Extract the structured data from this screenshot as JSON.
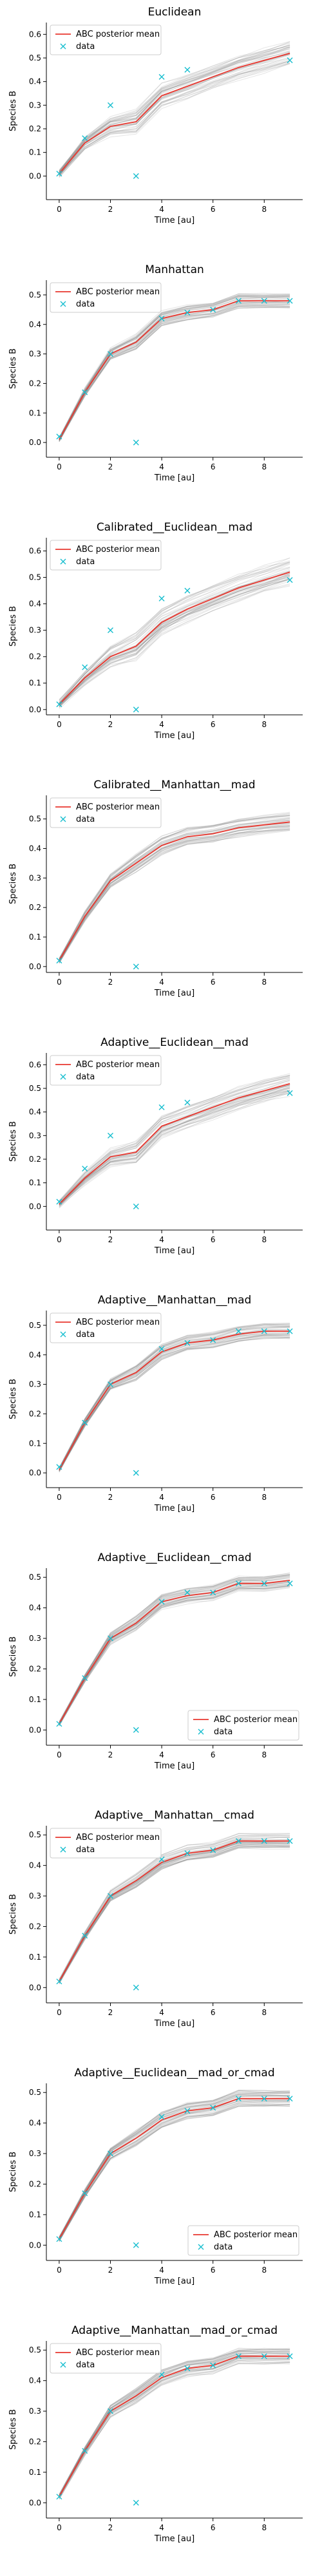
{
  "chart_data": [
    {
      "type": "line",
      "title": "Euclidean",
      "xlabel": "Time [au]",
      "ylabel": "Species B",
      "xlim": [
        -0.5,
        9.5
      ],
      "ylim": [
        -0.1,
        0.65
      ],
      "xticks": [
        0,
        2,
        4,
        6,
        8
      ],
      "yticks": [
        0.0,
        0.1,
        0.2,
        0.3,
        0.4,
        0.5,
        0.6
      ],
      "legend_loc": "upper-left",
      "legend": [
        "ABC posterior mean",
        "data"
      ],
      "series": [
        {
          "name": "ABC posterior mean",
          "kind": "line",
          "color": "#e8372f",
          "x": [
            0,
            1,
            2,
            3,
            4,
            5,
            6,
            7,
            8,
            9
          ],
          "y": [
            0.01,
            0.14,
            0.21,
            0.23,
            0.34,
            0.38,
            0.42,
            0.46,
            0.49,
            0.52
          ]
        },
        {
          "name": "data",
          "kind": "marker",
          "color": "#17becf",
          "x": [
            0,
            1,
            2,
            3,
            4,
            5,
            9
          ],
          "y": [
            0.01,
            0.16,
            0.3,
            0.0,
            0.42,
            0.45,
            0.49
          ]
        }
      ],
      "spread": 0.05
    },
    {
      "type": "line",
      "title": "Manhattan",
      "xlabel": "Time [au]",
      "ylabel": "Species B",
      "xlim": [
        -0.5,
        9.5
      ],
      "ylim": [
        -0.05,
        0.55
      ],
      "xticks": [
        0,
        2,
        4,
        6,
        8
      ],
      "yticks": [
        0.0,
        0.1,
        0.2,
        0.3,
        0.4,
        0.5
      ],
      "legend_loc": "upper-left",
      "legend": [
        "ABC posterior mean",
        "data"
      ],
      "series": [
        {
          "name": "ABC posterior mean",
          "kind": "line",
          "color": "#e8372f",
          "x": [
            0,
            1,
            2,
            3,
            4,
            5,
            6,
            7,
            8,
            9
          ],
          "y": [
            0.01,
            0.17,
            0.3,
            0.34,
            0.42,
            0.44,
            0.45,
            0.48,
            0.48,
            0.48
          ]
        },
        {
          "name": "data",
          "kind": "marker",
          "color": "#17becf",
          "x": [
            0,
            1,
            2,
            3,
            4,
            5,
            6,
            7,
            8,
            9
          ],
          "y": [
            0.02,
            0.17,
            0.3,
            0.0,
            0.42,
            0.44,
            0.45,
            0.48,
            0.48,
            0.48
          ]
        }
      ],
      "spread": 0.025
    },
    {
      "type": "line",
      "title": "Calibrated__Euclidean__mad",
      "xlabel": "Time [au]",
      "ylabel": "Species B",
      "xlim": [
        -0.5,
        9.5
      ],
      "ylim": [
        -0.02,
        0.65
      ],
      "xticks": [
        0,
        2,
        4,
        6,
        8
      ],
      "yticks": [
        0.0,
        0.1,
        0.2,
        0.3,
        0.4,
        0.5,
        0.6
      ],
      "legend_loc": "upper-left",
      "legend": [
        "ABC posterior mean",
        "data"
      ],
      "series": [
        {
          "name": "ABC posterior mean",
          "kind": "line",
          "color": "#e8372f",
          "x": [
            0,
            1,
            2,
            3,
            4,
            5,
            6,
            7,
            8,
            9
          ],
          "y": [
            0.02,
            0.12,
            0.2,
            0.24,
            0.33,
            0.38,
            0.42,
            0.46,
            0.49,
            0.52
          ]
        },
        {
          "name": "data",
          "kind": "marker",
          "color": "#17becf",
          "x": [
            0,
            1,
            2,
            3,
            4,
            5,
            9
          ],
          "y": [
            0.02,
            0.16,
            0.3,
            0.0,
            0.42,
            0.45,
            0.49
          ]
        }
      ],
      "spread": 0.05
    },
    {
      "type": "line",
      "title": "Calibrated__Manhattan__mad",
      "xlabel": "Time [au]",
      "ylabel": "Species B",
      "xlim": [
        -0.5,
        9.5
      ],
      "ylim": [
        -0.02,
        0.58
      ],
      "xticks": [
        0,
        2,
        4,
        6,
        8
      ],
      "yticks": [
        0.0,
        0.1,
        0.2,
        0.3,
        0.4,
        0.5
      ],
      "legend_loc": "upper-left",
      "legend": [
        "ABC posterior mean",
        "data"
      ],
      "series": [
        {
          "name": "ABC posterior mean",
          "kind": "line",
          "color": "#e8372f",
          "x": [
            0,
            1,
            2,
            3,
            4,
            5,
            6,
            7,
            8,
            9
          ],
          "y": [
            0.02,
            0.17,
            0.29,
            0.35,
            0.41,
            0.44,
            0.45,
            0.47,
            0.48,
            0.49
          ]
        },
        {
          "name": "data",
          "kind": "marker",
          "color": "#17becf",
          "x": [
            0,
            3
          ],
          "y": [
            0.02,
            0.0
          ]
        }
      ],
      "spread": 0.03
    },
    {
      "type": "line",
      "title": "Adaptive__Euclidean__mad",
      "xlabel": "Time [au]",
      "ylabel": "Species B",
      "xlim": [
        -0.5,
        9.5
      ],
      "ylim": [
        -0.1,
        0.65
      ],
      "xticks": [
        0,
        2,
        4,
        6,
        8
      ],
      "yticks": [
        0.0,
        0.1,
        0.2,
        0.3,
        0.4,
        0.5,
        0.6
      ],
      "legend_loc": "upper-left",
      "legend": [
        "ABC posterior mean",
        "data"
      ],
      "series": [
        {
          "name": "ABC posterior mean",
          "kind": "line",
          "color": "#e8372f",
          "x": [
            0,
            1,
            2,
            3,
            4,
            5,
            6,
            7,
            8,
            9
          ],
          "y": [
            0.01,
            0.12,
            0.21,
            0.23,
            0.34,
            0.38,
            0.42,
            0.46,
            0.49,
            0.52
          ]
        },
        {
          "name": "data",
          "kind": "marker",
          "color": "#17becf",
          "x": [
            0,
            1,
            2,
            3,
            4,
            5,
            9
          ],
          "y": [
            0.02,
            0.16,
            0.3,
            0.0,
            0.42,
            0.44,
            0.48
          ]
        }
      ],
      "spread": 0.05
    },
    {
      "type": "line",
      "title": "Adaptive__Manhattan__mad",
      "xlabel": "Time [au]",
      "ylabel": "Species B",
      "xlim": [
        -0.5,
        9.5
      ],
      "ylim": [
        -0.05,
        0.55
      ],
      "xticks": [
        0,
        2,
        4,
        6,
        8
      ],
      "yticks": [
        0.0,
        0.1,
        0.2,
        0.3,
        0.4,
        0.5
      ],
      "legend_loc": "upper-left",
      "legend": [
        "ABC posterior mean",
        "data"
      ],
      "series": [
        {
          "name": "ABC posterior mean",
          "kind": "line",
          "color": "#e8372f",
          "x": [
            0,
            1,
            2,
            3,
            4,
            5,
            6,
            7,
            8,
            9
          ],
          "y": [
            0.01,
            0.17,
            0.3,
            0.34,
            0.41,
            0.44,
            0.45,
            0.47,
            0.48,
            0.48
          ]
        },
        {
          "name": "data",
          "kind": "marker",
          "color": "#17becf",
          "x": [
            0,
            1,
            2,
            3,
            4,
            5,
            6,
            7,
            8,
            9
          ],
          "y": [
            0.02,
            0.17,
            0.3,
            0.0,
            0.42,
            0.44,
            0.45,
            0.48,
            0.48,
            0.48
          ]
        }
      ],
      "spread": 0.025
    },
    {
      "type": "line",
      "title": "Adaptive__Euclidean__cmad",
      "xlabel": "Time [au]",
      "ylabel": "Species B",
      "xlim": [
        -0.5,
        9.5
      ],
      "ylim": [
        -0.05,
        0.53
      ],
      "xticks": [
        0,
        2,
        4,
        6,
        8
      ],
      "yticks": [
        0.0,
        0.1,
        0.2,
        0.3,
        0.4,
        0.5
      ],
      "legend_loc": "lower-right",
      "legend": [
        "ABC posterior mean",
        "data"
      ],
      "series": [
        {
          "name": "ABC posterior mean",
          "kind": "line",
          "color": "#e8372f",
          "x": [
            0,
            1,
            2,
            3,
            4,
            5,
            6,
            7,
            8,
            9
          ],
          "y": [
            0.02,
            0.17,
            0.3,
            0.35,
            0.42,
            0.44,
            0.45,
            0.48,
            0.48,
            0.49
          ]
        },
        {
          "name": "data",
          "kind": "marker",
          "color": "#17becf",
          "x": [
            0,
            1,
            2,
            3,
            4,
            5,
            6,
            7,
            8,
            9
          ],
          "y": [
            0.02,
            0.17,
            0.3,
            0.0,
            0.42,
            0.45,
            0.45,
            0.48,
            0.48,
            0.48
          ]
        }
      ],
      "spread": 0.025
    },
    {
      "type": "line",
      "title": "Adaptive__Manhattan__cmad",
      "xlabel": "Time [au]",
      "ylabel": "Species B",
      "xlim": [
        -0.5,
        9.5
      ],
      "ylim": [
        -0.05,
        0.53
      ],
      "xticks": [
        0,
        2,
        4,
        6,
        8
      ],
      "yticks": [
        0.0,
        0.1,
        0.2,
        0.3,
        0.4,
        0.5
      ],
      "legend_loc": "upper-left",
      "legend": [
        "ABC posterior mean",
        "data"
      ],
      "series": [
        {
          "name": "ABC posterior mean",
          "kind": "line",
          "color": "#e8372f",
          "x": [
            0,
            1,
            2,
            3,
            4,
            5,
            6,
            7,
            8,
            9
          ],
          "y": [
            0.02,
            0.17,
            0.3,
            0.35,
            0.41,
            0.44,
            0.45,
            0.48,
            0.48,
            0.48
          ]
        },
        {
          "name": "data",
          "kind": "marker",
          "color": "#17becf",
          "x": [
            0,
            1,
            2,
            3,
            4,
            5,
            6,
            7,
            8,
            9
          ],
          "y": [
            0.02,
            0.17,
            0.3,
            0.0,
            0.42,
            0.44,
            0.45,
            0.48,
            0.48,
            0.48
          ]
        }
      ],
      "spread": 0.025
    },
    {
      "type": "line",
      "title": "Adaptive__Euclidean__mad_or_cmad",
      "xlabel": "Time [au]",
      "ylabel": "Species B",
      "xlim": [
        -0.5,
        9.5
      ],
      "ylim": [
        -0.05,
        0.53
      ],
      "xticks": [
        0,
        2,
        4,
        6,
        8
      ],
      "yticks": [
        0.0,
        0.1,
        0.2,
        0.3,
        0.4,
        0.5
      ],
      "legend_loc": "lower-right",
      "legend": [
        "ABC posterior mean",
        "data"
      ],
      "series": [
        {
          "name": "ABC posterior mean",
          "kind": "line",
          "color": "#e8372f",
          "x": [
            0,
            1,
            2,
            3,
            4,
            5,
            6,
            7,
            8,
            9
          ],
          "y": [
            0.02,
            0.17,
            0.3,
            0.35,
            0.41,
            0.44,
            0.45,
            0.48,
            0.48,
            0.48
          ]
        },
        {
          "name": "data",
          "kind": "marker",
          "color": "#17becf",
          "x": [
            0,
            1,
            2,
            3,
            4,
            5,
            6,
            7,
            8,
            9
          ],
          "y": [
            0.02,
            0.17,
            0.3,
            0.0,
            0.42,
            0.44,
            0.45,
            0.48,
            0.48,
            0.48
          ]
        }
      ],
      "spread": 0.025
    },
    {
      "type": "line",
      "title": "Adaptive__Manhattan__mad_or_cmad",
      "xlabel": "Time [au]",
      "ylabel": "Species B",
      "xlim": [
        -0.5,
        9.5
      ],
      "ylim": [
        -0.05,
        0.53
      ],
      "xticks": [
        0,
        2,
        4,
        6,
        8
      ],
      "yticks": [
        0.0,
        0.1,
        0.2,
        0.3,
        0.4,
        0.5
      ],
      "legend_loc": "upper-left",
      "legend": [
        "ABC posterior mean",
        "data"
      ],
      "series": [
        {
          "name": "ABC posterior mean",
          "kind": "line",
          "color": "#e8372f",
          "x": [
            0,
            1,
            2,
            3,
            4,
            5,
            6,
            7,
            8,
            9
          ],
          "y": [
            0.02,
            0.17,
            0.3,
            0.35,
            0.41,
            0.44,
            0.45,
            0.48,
            0.48,
            0.48
          ]
        },
        {
          "name": "data",
          "kind": "marker",
          "color": "#17becf",
          "x": [
            0,
            1,
            2,
            3,
            4,
            5,
            6,
            7,
            8,
            9
          ],
          "y": [
            0.02,
            0.17,
            0.3,
            0.0,
            0.42,
            0.44,
            0.45,
            0.48,
            0.48,
            0.48
          ]
        }
      ],
      "spread": 0.025
    }
  ]
}
